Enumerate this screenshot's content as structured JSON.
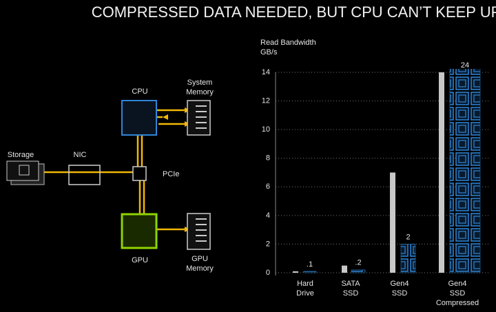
{
  "title": "COMPRESSED DATA NEEDED, BUT CPU CAN’T KEEP UP",
  "diagram": {
    "nodes": [
      {
        "label": [
          "Storage"
        ]
      },
      {
        "label": [
          "NIC"
        ]
      },
      {
        "label": [
          "CPU"
        ]
      },
      {
        "label": [
          "System",
          "Memory"
        ]
      },
      {
        "label": [
          "PCIe"
        ]
      },
      {
        "label": [
          "GPU"
        ]
      },
      {
        "label": [
          "GPU",
          "Memory"
        ]
      }
    ]
  },
  "chart_data": {
    "type": "bar",
    "y_label": [
      "Read Bandwidth",
      "GB/s"
    ],
    "categories": [
      [
        "Hard",
        "Drive"
      ],
      [
        "SATA",
        "SSD"
      ],
      [
        "Gen4",
        "SSD"
      ],
      [
        "Gen4",
        "SSD",
        "Compressed"
      ]
    ],
    "series": [
      {
        "color": "#c8c8c8",
        "values": [
          0.1,
          0.5,
          7,
          14
        ]
      },
      {
        "color": "#2f86d6",
        "values": [
          0.1,
          0.2,
          2,
          24
        ],
        "value_labels": [
          ".1",
          ".2",
          "2",
          "24"
        ]
      }
    ],
    "ylim": [
      0,
      14
    ],
    "yticks": [
      0,
      2,
      4,
      6,
      8,
      10,
      12,
      14
    ],
    "grid": true
  }
}
